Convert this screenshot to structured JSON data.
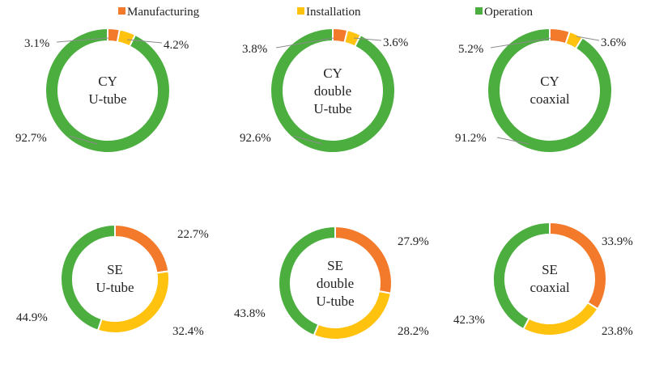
{
  "chart_data": {
    "type": "pie",
    "style": "donut",
    "legend": {
      "position": "top",
      "entries": [
        {
          "name": "Manufacturing",
          "color": "#F47A2B"
        },
        {
          "name": "Installation",
          "color": "#FFC20E"
        },
        {
          "name": "Operation",
          "color": "#4BAE3F"
        }
      ]
    },
    "categories": [
      "Manufacturing",
      "Installation",
      "Operation"
    ],
    "charts": [
      {
        "label": [
          "CY",
          "U-tube"
        ],
        "values": [
          3.1,
          4.2,
          92.7
        ],
        "value_labels": [
          "3.1%",
          "4.2%",
          "92.7%"
        ]
      },
      {
        "label": [
          "CY",
          "double",
          "U-tube"
        ],
        "values": [
          3.8,
          3.6,
          92.6
        ],
        "value_labels": [
          "3.8%",
          "3.6%",
          "92.6%"
        ]
      },
      {
        "label": [
          "CY",
          "coaxial"
        ],
        "values": [
          5.2,
          3.6,
          91.2
        ],
        "value_labels": [
          "5.2%",
          "3.6%",
          "91.2%"
        ]
      },
      {
        "label": [
          "SE",
          "U-tube"
        ],
        "values": [
          22.7,
          32.4,
          44.9
        ],
        "value_labels": [
          "22.7%",
          "32.4%",
          "44.9%"
        ]
      },
      {
        "label": [
          "SE",
          "double",
          "U-tube"
        ],
        "values": [
          27.9,
          28.2,
          43.8
        ],
        "value_labels": [
          "27.9%",
          "28.2%",
          "43.8%"
        ]
      },
      {
        "label": [
          "SE",
          "coaxial"
        ],
        "values": [
          33.9,
          23.8,
          42.3
        ],
        "value_labels": [
          "33.9%",
          "23.8%",
          "42.3%"
        ]
      }
    ]
  }
}
